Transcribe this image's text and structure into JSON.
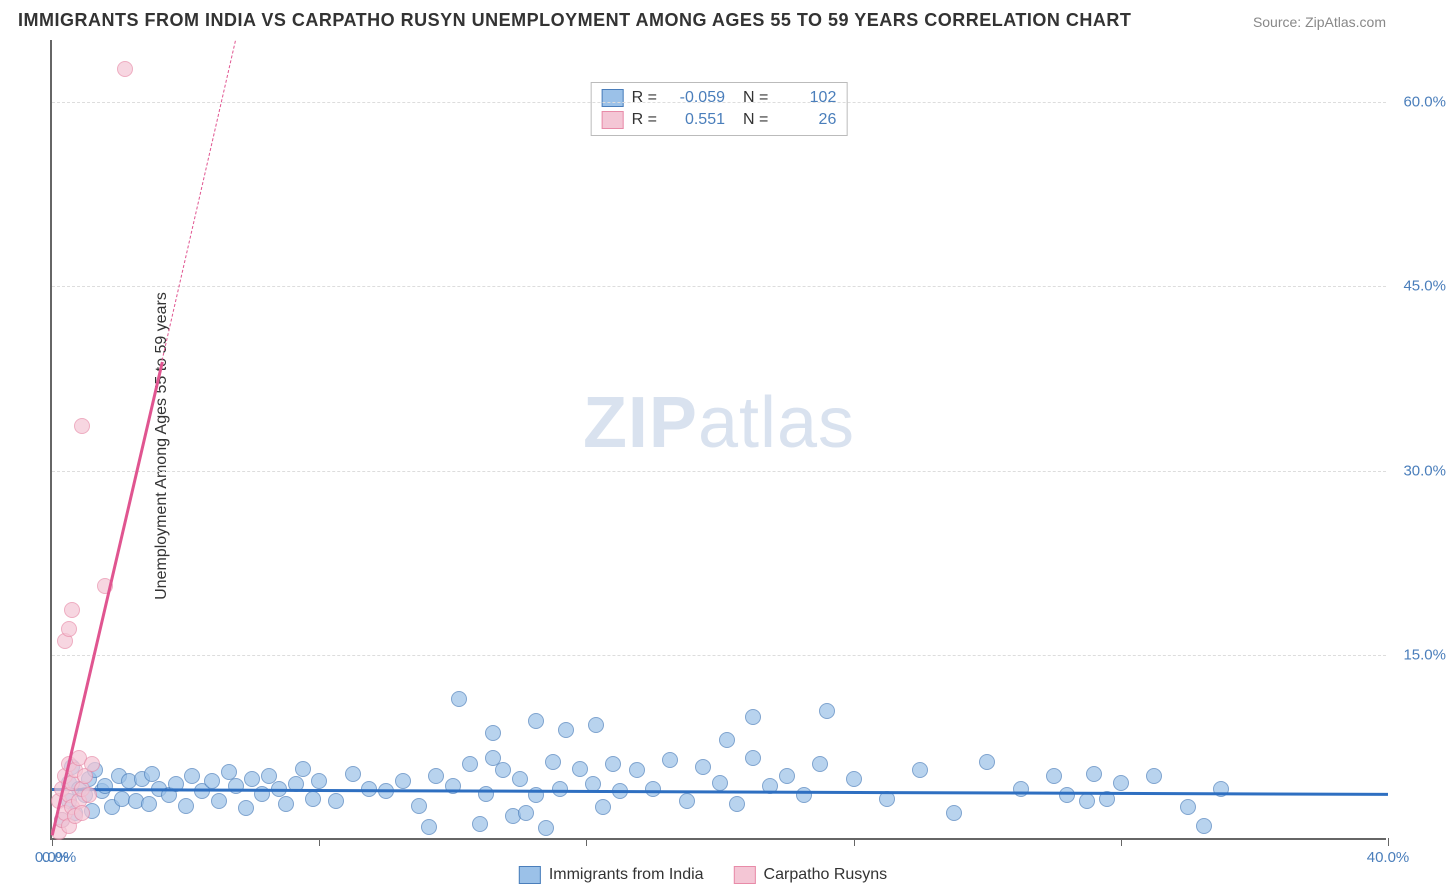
{
  "title": "IMMIGRANTS FROM INDIA VS CARPATHO RUSYN UNEMPLOYMENT AMONG AGES 55 TO 59 YEARS CORRELATION CHART",
  "source_prefix": "Source: ",
  "source": "ZipAtlas.com",
  "ylabel": "Unemployment Among Ages 55 to 59 years",
  "watermark_bold": "ZIP",
  "watermark_light": "atlas",
  "watermark_color": "#d9e2ef",
  "chart": {
    "type": "scatter",
    "background_color": "#ffffff",
    "grid_color": "#dddddd",
    "axis_color": "#666666",
    "xlim": [
      0,
      40
    ],
    "ylim": [
      0,
      65
    ],
    "x_ticks": [
      0,
      8,
      16,
      24,
      32,
      40
    ],
    "y_ticks": [
      15,
      30,
      45,
      60
    ],
    "x_tick_labels": [
      "0.0%",
      "",
      "",
      "",
      "",
      "40.0%"
    ],
    "y_tick_labels": [
      "15.0%",
      "30.0%",
      "45.0%",
      "60.0%"
    ],
    "origin_label": "0.0%",
    "tick_label_color": "#4a7ebb",
    "tick_label_fontsize": 15,
    "marker_radius": 8,
    "marker_opacity": 0.35,
    "series": [
      {
        "name": "Immigrants from India",
        "fill": "#9bc1e8",
        "stroke": "#4a7ebb",
        "trend_color": "#2e6fc1",
        "R": "-0.059",
        "N": "102",
        "trend": {
          "x1": 0,
          "y1": 4.2,
          "x2": 40,
          "y2": 3.8
        },
        "points": [
          [
            0.3,
            1.5
          ],
          [
            0.5,
            3.0
          ],
          [
            0.5,
            4.5
          ],
          [
            0.6,
            5.8
          ],
          [
            0.7,
            2.0
          ],
          [
            0.8,
            4.0
          ],
          [
            1.0,
            3.5
          ],
          [
            1.1,
            4.8
          ],
          [
            1.2,
            2.2
          ],
          [
            1.3,
            5.5
          ],
          [
            1.5,
            3.8
          ],
          [
            1.6,
            4.2
          ],
          [
            1.8,
            2.5
          ],
          [
            2.0,
            5.0
          ],
          [
            2.1,
            3.2
          ],
          [
            2.3,
            4.6
          ],
          [
            2.5,
            3.0
          ],
          [
            2.7,
            4.8
          ],
          [
            2.9,
            2.8
          ],
          [
            3.0,
            5.2
          ],
          [
            3.2,
            4.0
          ],
          [
            3.5,
            3.5
          ],
          [
            3.7,
            4.4
          ],
          [
            4.0,
            2.6
          ],
          [
            4.2,
            5.0
          ],
          [
            4.5,
            3.8
          ],
          [
            4.8,
            4.6
          ],
          [
            5.0,
            3.0
          ],
          [
            5.3,
            5.4
          ],
          [
            5.5,
            4.2
          ],
          [
            5.8,
            2.4
          ],
          [
            6.0,
            4.8
          ],
          [
            6.3,
            3.6
          ],
          [
            6.5,
            5.0
          ],
          [
            6.8,
            4.0
          ],
          [
            7.0,
            2.8
          ],
          [
            7.3,
            4.4
          ],
          [
            7.5,
            5.6
          ],
          [
            7.8,
            3.2
          ],
          [
            8.0,
            4.6
          ],
          [
            8.5,
            3.0
          ],
          [
            9.0,
            5.2
          ],
          [
            9.5,
            4.0
          ],
          [
            10.0,
            3.8
          ],
          [
            10.5,
            4.6
          ],
          [
            11.0,
            2.6
          ],
          [
            11.3,
            0.9
          ],
          [
            11.5,
            5.0
          ],
          [
            12.0,
            4.2
          ],
          [
            12.5,
            6.0
          ],
          [
            12.2,
            11.3
          ],
          [
            12.8,
            1.1
          ],
          [
            13.0,
            3.6
          ],
          [
            13.2,
            6.5
          ],
          [
            13.2,
            8.5
          ],
          [
            13.5,
            5.5
          ],
          [
            13.8,
            1.8
          ],
          [
            14.0,
            4.8
          ],
          [
            14.2,
            2.0
          ],
          [
            14.5,
            3.5
          ],
          [
            14.5,
            9.5
          ],
          [
            14.8,
            0.8
          ],
          [
            15.0,
            6.2
          ],
          [
            15.2,
            4.0
          ],
          [
            15.4,
            8.8
          ],
          [
            15.8,
            5.6
          ],
          [
            16.2,
            4.4
          ],
          [
            16.3,
            9.2
          ],
          [
            16.5,
            2.5
          ],
          [
            16.8,
            6.0
          ],
          [
            17.0,
            3.8
          ],
          [
            17.5,
            5.5
          ],
          [
            18.0,
            4.0
          ],
          [
            18.5,
            6.3
          ],
          [
            19.0,
            3.0
          ],
          [
            19.5,
            5.8
          ],
          [
            20.0,
            4.5
          ],
          [
            20.2,
            8.0
          ],
          [
            20.5,
            2.8
          ],
          [
            21.0,
            6.5
          ],
          [
            21.0,
            9.8
          ],
          [
            21.5,
            4.2
          ],
          [
            22.0,
            5.0
          ],
          [
            22.5,
            3.5
          ],
          [
            23.0,
            6.0
          ],
          [
            23.2,
            10.3
          ],
          [
            24.0,
            4.8
          ],
          [
            25.0,
            3.2
          ],
          [
            26.0,
            5.5
          ],
          [
            27.0,
            2.0
          ],
          [
            28.0,
            6.2
          ],
          [
            29.0,
            4.0
          ],
          [
            30.0,
            5.0
          ],
          [
            30.4,
            3.5
          ],
          [
            31.0,
            3.0
          ],
          [
            31.2,
            5.2
          ],
          [
            31.6,
            3.2
          ],
          [
            32.0,
            4.5
          ],
          [
            33.0,
            5.0
          ],
          [
            34.0,
            2.5
          ],
          [
            35.0,
            4.0
          ],
          [
            34.5,
            1.0
          ]
        ]
      },
      {
        "name": "Carpatho Rusyns",
        "fill": "#f4c6d5",
        "stroke": "#e88ba8",
        "trend_color": "#e05590",
        "R": "0.551",
        "N": "26",
        "trend": {
          "x1": 0,
          "y1": 0.5,
          "x2": 3.3,
          "y2": 39
        },
        "trend_dash": {
          "x1": 3.3,
          "y1": 39,
          "x2": 5.5,
          "y2": 65
        },
        "points": [
          [
            0.2,
            0.5
          ],
          [
            0.2,
            3.0
          ],
          [
            0.3,
            1.5
          ],
          [
            0.3,
            4.0
          ],
          [
            0.4,
            2.0
          ],
          [
            0.4,
            5.0
          ],
          [
            0.5,
            1.0
          ],
          [
            0.5,
            3.5
          ],
          [
            0.5,
            6.0
          ],
          [
            0.6,
            2.5
          ],
          [
            0.6,
            4.5
          ],
          [
            0.7,
            1.8
          ],
          [
            0.7,
            5.5
          ],
          [
            0.8,
            3.0
          ],
          [
            0.8,
            6.5
          ],
          [
            0.9,
            2.0
          ],
          [
            0.9,
            4.0
          ],
          [
            1.0,
            5.0
          ],
          [
            1.1,
            3.5
          ],
          [
            1.2,
            6.0
          ],
          [
            0.4,
            16.0
          ],
          [
            0.5,
            17.0
          ],
          [
            0.6,
            18.5
          ],
          [
            0.9,
            33.5
          ],
          [
            1.6,
            20.5
          ],
          [
            2.2,
            62.5
          ]
        ]
      }
    ]
  },
  "legend_labels": {
    "R_label": "R =",
    "N_label": "N ="
  },
  "bottom_legend": [
    "Immigrants from India",
    "Carpatho Rusyns"
  ]
}
